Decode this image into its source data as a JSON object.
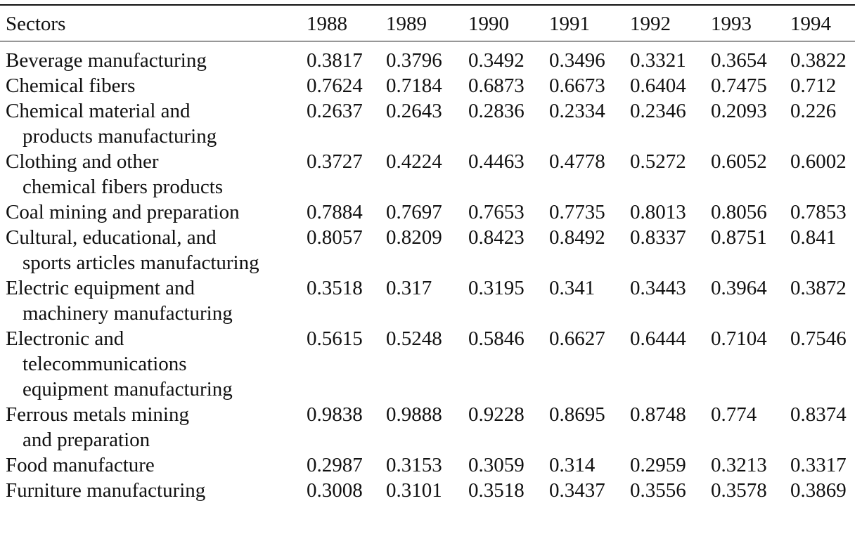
{
  "table": {
    "header": {
      "sector_label": "Sectors",
      "years": [
        "1988",
        "1989",
        "1990",
        "1991",
        "1992",
        "1993",
        "1994"
      ]
    },
    "rows": [
      {
        "sector": [
          "Beverage manufacturing"
        ],
        "values": [
          "0.3817",
          "0.3796",
          "0.3492",
          "0.3496",
          "0.3321",
          "0.3654",
          "0.3822"
        ]
      },
      {
        "sector": [
          "Chemical fibers"
        ],
        "values": [
          "0.7624",
          "0.7184",
          "0.6873",
          "0.6673",
          "0.6404",
          "0.7475",
          "0.712"
        ]
      },
      {
        "sector": [
          "Chemical material and",
          "products manufacturing"
        ],
        "values": [
          "0.2637",
          "0.2643",
          "0.2836",
          "0.2334",
          "0.2346",
          "0.2093",
          "0.226"
        ]
      },
      {
        "sector": [
          "Clothing and other",
          "chemical fibers products"
        ],
        "values": [
          "0.3727",
          "0.4224",
          "0.4463",
          "0.4778",
          "0.5272",
          "0.6052",
          "0.6002"
        ]
      },
      {
        "sector": [
          "Coal mining and preparation"
        ],
        "values": [
          "0.7884",
          "0.7697",
          "0.7653",
          "0.7735",
          "0.8013",
          "0.8056",
          "0.7853"
        ]
      },
      {
        "sector": [
          "Cultural, educational, and",
          "sports articles manufacturing"
        ],
        "values": [
          "0.8057",
          "0.8209",
          "0.8423",
          "0.8492",
          "0.8337",
          "0.8751",
          "0.841"
        ]
      },
      {
        "sector": [
          "Electric equipment and",
          "machinery manufacturing"
        ],
        "values": [
          "0.3518",
          "0.317",
          "0.3195",
          "0.341",
          "0.3443",
          "0.3964",
          "0.3872"
        ]
      },
      {
        "sector": [
          "Electronic and",
          "telecommunications",
          "equipment manufacturing"
        ],
        "values": [
          "0.5615",
          "0.5248",
          "0.5846",
          "0.6627",
          "0.6444",
          "0.7104",
          "0.7546"
        ]
      },
      {
        "sector": [
          "Ferrous metals mining",
          "and preparation"
        ],
        "values": [
          "0.9838",
          "0.9888",
          "0.9228",
          "0.8695",
          "0.8748",
          "0.774",
          "0.8374"
        ]
      },
      {
        "sector": [
          "Food manufacture"
        ],
        "values": [
          "0.2987",
          "0.3153",
          "0.3059",
          "0.314",
          "0.2959",
          "0.3213",
          "0.3317"
        ]
      },
      {
        "sector": [
          "Furniture manufacturing"
        ],
        "values": [
          "0.3008",
          "0.3101",
          "0.3518",
          "0.3437",
          "0.3556",
          "0.3578",
          "0.3869"
        ]
      }
    ]
  }
}
